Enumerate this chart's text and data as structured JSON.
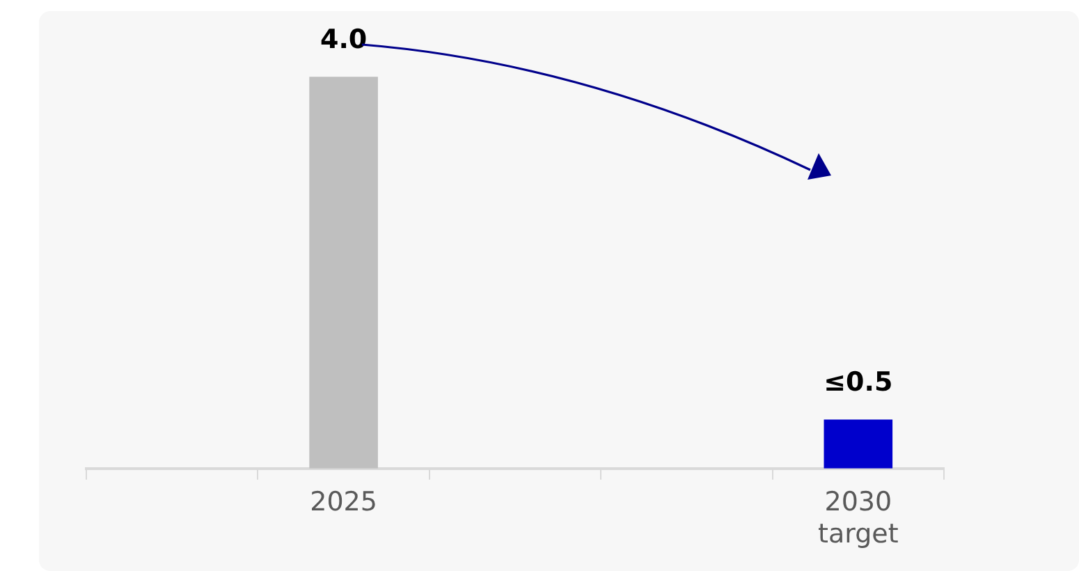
{
  "chart_data": {
    "type": "bar",
    "categories": [
      null,
      "2025",
      null,
      null,
      "2030 target"
    ],
    "values": [
      null,
      4.0,
      null,
      null,
      0.5
    ],
    "colors": [
      null,
      "#bfbfbf",
      null,
      null,
      "#0000cc"
    ],
    "value_labels": [
      null,
      "4.0",
      null,
      null,
      "≤0.5"
    ],
    "tick_labels": "x",
    "grid": false,
    "legend": false
  }
}
